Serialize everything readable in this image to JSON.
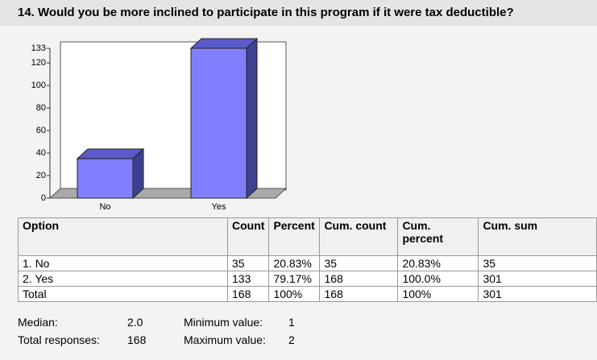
{
  "title": "14. Would you be more inclined to participate in this program if it were tax deductible?",
  "chart_data": {
    "type": "bar3d",
    "categories": [
      "No",
      "Yes"
    ],
    "values": [
      35,
      133
    ],
    "color": "#8080ff",
    "ylim": [
      0,
      133
    ],
    "yticks": [
      0,
      20,
      40,
      60,
      80,
      100,
      120,
      133
    ]
  },
  "table": {
    "header": [
      "Option",
      "Count",
      "Percent",
      "Cum. count",
      "Cum. percent",
      "Cum. sum"
    ],
    "rows": [
      [
        "1. No",
        "35",
        "20.83%",
        "35",
        "20.83%",
        "35"
      ],
      [
        "2. Yes",
        "133",
        "79.17%",
        "168",
        "100.0%",
        "301"
      ],
      [
        "Total",
        "168",
        "100%",
        "168",
        "100%",
        "301"
      ]
    ]
  },
  "stats": [
    [
      "Median:",
      "2.0"
    ],
    [
      "Total responses:",
      "168"
    ],
    [
      "Minimum value:",
      "1"
    ],
    [
      "Maximum value:",
      "2"
    ]
  ]
}
